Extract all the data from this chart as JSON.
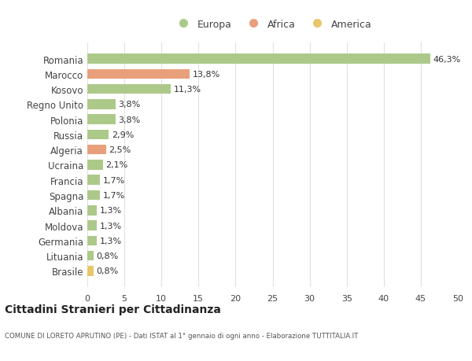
{
  "categories": [
    "Romania",
    "Marocco",
    "Kosovo",
    "Regno Unito",
    "Polonia",
    "Russia",
    "Algeria",
    "Ucraina",
    "Francia",
    "Spagna",
    "Albania",
    "Moldova",
    "Germania",
    "Lituania",
    "Brasile"
  ],
  "values": [
    46.3,
    13.8,
    11.3,
    3.8,
    3.8,
    2.9,
    2.5,
    2.1,
    1.7,
    1.7,
    1.3,
    1.3,
    1.3,
    0.8,
    0.8
  ],
  "labels": [
    "46,3%",
    "13,8%",
    "11,3%",
    "3,8%",
    "3,8%",
    "2,9%",
    "2,5%",
    "2,1%",
    "1,7%",
    "1,7%",
    "1,3%",
    "1,3%",
    "1,3%",
    "0,8%",
    "0,8%"
  ],
  "colors": [
    "#adc98a",
    "#e8a07a",
    "#adc98a",
    "#adc98a",
    "#adc98a",
    "#adc98a",
    "#e8a07a",
    "#adc98a",
    "#adc98a",
    "#adc98a",
    "#adc98a",
    "#adc98a",
    "#adc98a",
    "#adc98a",
    "#e8c76a"
  ],
  "legend": [
    {
      "label": "Europa",
      "color": "#adc98a"
    },
    {
      "label": "Africa",
      "color": "#e8a07a"
    },
    {
      "label": "America",
      "color": "#e8c76a"
    }
  ],
  "xlim": [
    0,
    50
  ],
  "xticks": [
    0,
    5,
    10,
    15,
    20,
    25,
    30,
    35,
    40,
    45,
    50
  ],
  "title": "Cittadini Stranieri per Cittadinanza",
  "subtitle": "COMUNE DI LORETO APRUTINO (PE) - Dati ISTAT al 1° gennaio di ogni anno - Elaborazione TUTTITALIA.IT",
  "bg_color": "#ffffff",
  "grid_color": "#e0e0e0",
  "bar_height": 0.65
}
